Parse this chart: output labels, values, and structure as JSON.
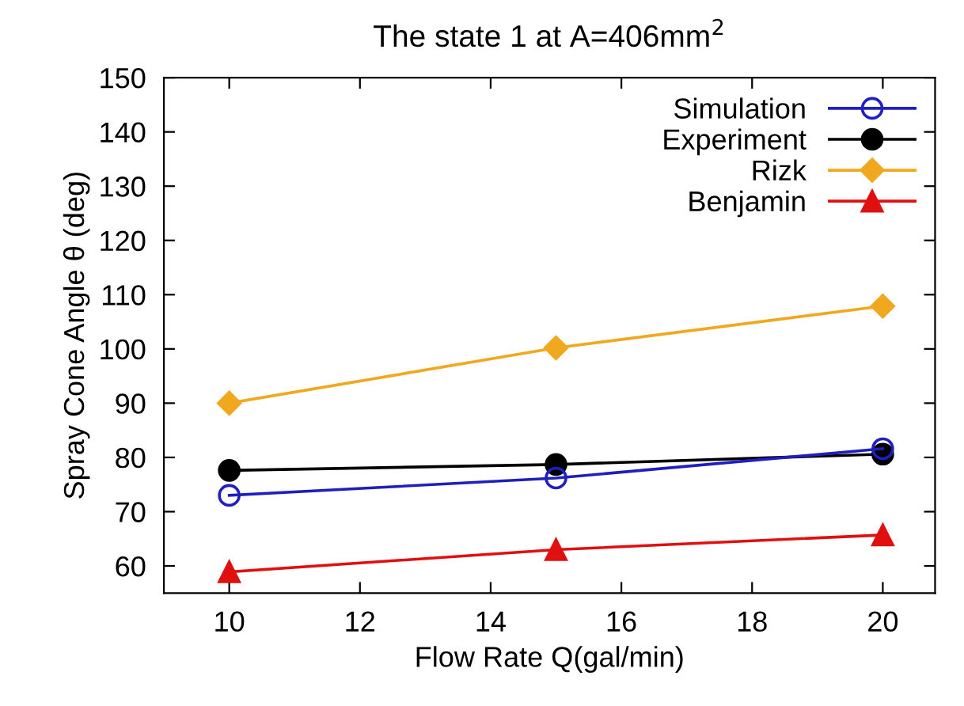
{
  "chart_data": {
    "type": "line",
    "title": "The state 1 at A=406mm$^{2}$",
    "xlabel": "Flow Rate Q(gal/min)",
    "ylabel": "Spray Cone Angle θ (deg)",
    "x": [
      10,
      15,
      20
    ],
    "series": [
      {
        "name": "Simulation",
        "color": "#1f1fbf",
        "marker": "open circle",
        "values": [
          73.0,
          76.2,
          81.6
        ]
      },
      {
        "name": "Experiment",
        "color": "#000000",
        "marker": "circle",
        "values": [
          77.6,
          78.7,
          80.6
        ]
      },
      {
        "name": "Rizk",
        "color": "#f0a81e",
        "marker": "diamond",
        "values": [
          90.0,
          100.2,
          107.9
        ]
      },
      {
        "name": "Benjamin",
        "color": "#e01010",
        "marker": "triangle",
        "values": [
          58.9,
          63.0,
          65.7
        ]
      }
    ],
    "xlim": [
      9,
      20.8
    ],
    "ylim": [
      55,
      150
    ],
    "xticks": [
      10,
      12,
      14,
      16,
      18,
      20
    ],
    "yticks": [
      60,
      70,
      80,
      90,
      100,
      110,
      120,
      130,
      140,
      150
    ],
    "grid": false,
    "legend": "top right",
    "line_style": "solid"
  }
}
